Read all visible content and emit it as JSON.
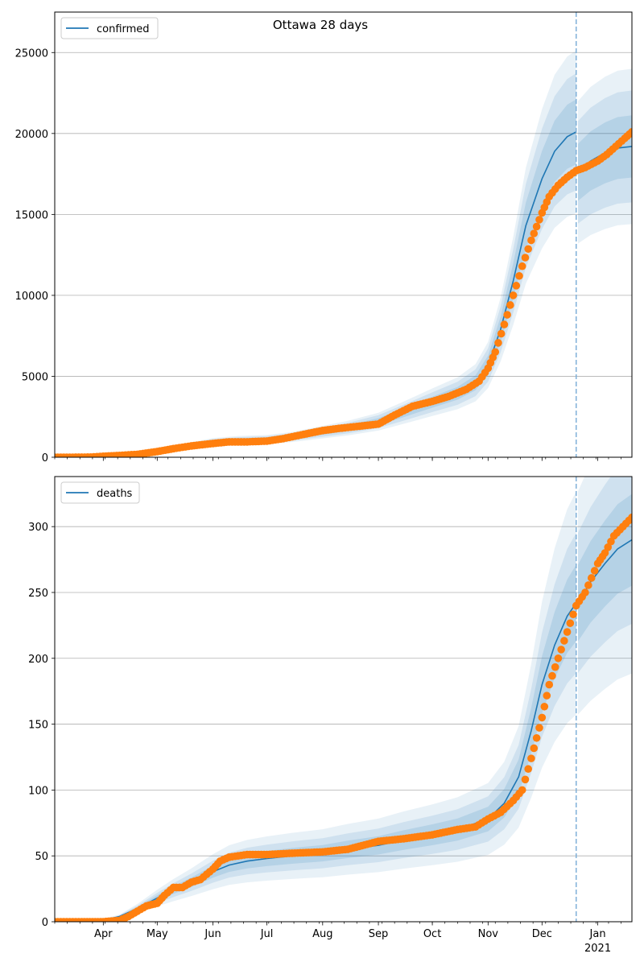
{
  "figure": {
    "title": "Ottawa 28 days"
  },
  "colors": {
    "model": "#1f77b4",
    "observed": "#ff7f0e",
    "band": "#1f77b4",
    "grid": "#b0b0b0",
    "vline": "#7fb0d8"
  },
  "x_axis": {
    "start": "2020-03-05",
    "end": "2021-01-20",
    "month_ticks": [
      {
        "date": "2020-04-01",
        "label": "Apr"
      },
      {
        "date": "2020-05-01",
        "label": "May"
      },
      {
        "date": "2020-06-01",
        "label": "Jun"
      },
      {
        "date": "2020-07-01",
        "label": "Jul"
      },
      {
        "date": "2020-08-01",
        "label": "Aug"
      },
      {
        "date": "2020-09-01",
        "label": "Sep"
      },
      {
        "date": "2020-10-01",
        "label": "Oct"
      },
      {
        "date": "2020-11-01",
        "label": "Nov"
      },
      {
        "date": "2020-12-01",
        "label": "Dec"
      },
      {
        "date": "2021-01-01",
        "label": "Jan"
      }
    ],
    "year_label": "2021",
    "forecast_start": "2020-12-20"
  },
  "chart_data": [
    {
      "type": "line",
      "legend": "confirmed",
      "legend_loc": "upper-left",
      "ylim": [
        0,
        27500
      ],
      "yticks": [
        0,
        5000,
        10000,
        15000,
        20000,
        25000
      ],
      "grid": "y",
      "model": {
        "x": [
          "2020-03-05",
          "2020-03-20",
          "2020-04-01",
          "2020-04-15",
          "2020-05-01",
          "2020-05-15",
          "2020-06-01",
          "2020-06-15",
          "2020-07-01",
          "2020-07-15",
          "2020-08-01",
          "2020-08-15",
          "2020-09-01",
          "2020-09-15",
          "2020-10-01",
          "2020-10-15",
          "2020-10-25",
          "2020-11-01",
          "2020-11-08",
          "2020-11-15",
          "2020-11-22",
          "2020-12-01",
          "2020-12-08",
          "2020-12-15",
          "2020-12-20",
          "2020-12-21",
          "2020-12-28",
          "2021-01-05",
          "2021-01-12",
          "2021-01-20"
        ],
        "y": [
          0,
          10,
          60,
          150,
          400,
          650,
          950,
          1050,
          1100,
          1250,
          1550,
          1800,
          2200,
          2750,
          3400,
          3950,
          4600,
          5700,
          7900,
          10900,
          14300,
          17200,
          18900,
          19800,
          20100,
          17600,
          18300,
          18800,
          19100,
          19200
        ],
        "band_rel": [
          0.25,
          0.18,
          0.1
        ]
      },
      "observed": {
        "x": [
          "2020-03-05",
          "2020-03-15",
          "2020-03-25",
          "2020-04-01",
          "2020-04-10",
          "2020-04-20",
          "2020-05-01",
          "2020-05-10",
          "2020-05-20",
          "2020-06-01",
          "2020-06-10",
          "2020-06-20",
          "2020-07-01",
          "2020-07-10",
          "2020-07-20",
          "2020-08-01",
          "2020-08-10",
          "2020-08-20",
          "2020-09-01",
          "2020-09-10",
          "2020-09-20",
          "2020-10-01",
          "2020-10-10",
          "2020-10-20",
          "2020-10-27",
          "2020-11-01",
          "2020-11-05",
          "2020-11-10",
          "2020-11-15",
          "2020-11-20",
          "2020-11-25",
          "2020-12-01",
          "2020-12-05",
          "2020-12-10",
          "2020-12-15",
          "2020-12-20",
          "2020-12-25",
          "2021-01-01",
          "2021-01-06",
          "2021-01-11",
          "2021-01-16",
          "2021-01-20"
        ],
        "y": [
          0,
          0,
          10,
          60,
          110,
          180,
          350,
          530,
          700,
          850,
          950,
          950,
          1000,
          1150,
          1380,
          1650,
          1780,
          1900,
          2050,
          2600,
          3150,
          3450,
          3750,
          4200,
          4700,
          5500,
          6500,
          8200,
          10000,
          11800,
          13400,
          15100,
          16100,
          16800,
          17300,
          17700,
          17900,
          18300,
          18700,
          19200,
          19700,
          20100
        ]
      }
    },
    {
      "type": "line",
      "legend": "deaths",
      "legend_loc": "upper-left",
      "ylim": [
        0,
        338
      ],
      "yticks": [
        0,
        50,
        100,
        150,
        200,
        250,
        300
      ],
      "grid": "y",
      "model": {
        "x": [
          "2020-03-05",
          "2020-03-20",
          "2020-04-01",
          "2020-04-10",
          "2020-04-20",
          "2020-05-01",
          "2020-05-10",
          "2020-05-20",
          "2020-06-01",
          "2020-06-10",
          "2020-06-20",
          "2020-07-01",
          "2020-07-15",
          "2020-08-01",
          "2020-08-15",
          "2020-09-01",
          "2020-09-15",
          "2020-10-01",
          "2020-10-15",
          "2020-11-01",
          "2020-11-10",
          "2020-11-18",
          "2020-11-25",
          "2020-12-01",
          "2020-12-08",
          "2020-12-15",
          "2020-12-20",
          "2020-12-21",
          "2020-12-28",
          "2021-01-05",
          "2021-01-12",
          "2021-01-20"
        ],
        "y": [
          0,
          0,
          1,
          4,
          10,
          18,
          24,
          30,
          38,
          43,
          46,
          48,
          50,
          52,
          55,
          58,
          62,
          66,
          70,
          78,
          90,
          110,
          145,
          180,
          210,
          232,
          242,
          242,
          258,
          272,
          283,
          290
        ],
        "band_rel": [
          0.35,
          0.22,
          0.12
        ]
      },
      "observed": {
        "x": [
          "2020-03-05",
          "2020-03-20",
          "2020-04-01",
          "2020-04-10",
          "2020-04-15",
          "2020-04-20",
          "2020-04-25",
          "2020-05-01",
          "2020-05-05",
          "2020-05-10",
          "2020-05-15",
          "2020-05-20",
          "2020-05-25",
          "2020-06-01",
          "2020-06-05",
          "2020-06-10",
          "2020-06-15",
          "2020-06-20",
          "2020-07-01",
          "2020-07-15",
          "2020-08-01",
          "2020-08-15",
          "2020-09-01",
          "2020-09-15",
          "2020-10-01",
          "2020-10-15",
          "2020-10-25",
          "2020-11-01",
          "2020-11-08",
          "2020-11-15",
          "2020-11-20",
          "2020-11-25",
          "2020-12-01",
          "2020-12-05",
          "2020-12-10",
          "2020-12-15",
          "2020-12-20",
          "2020-12-25",
          "2021-01-01",
          "2021-01-05",
          "2021-01-10",
          "2021-01-15",
          "2021-01-20"
        ],
        "y": [
          0,
          0,
          0,
          1,
          4,
          8,
          12,
          14,
          20,
          26,
          26,
          30,
          32,
          40,
          46,
          49,
          50,
          51,
          51,
          52,
          53,
          55,
          61,
          63,
          66,
          70,
          72,
          78,
          83,
          92,
          100,
          124,
          155,
          180,
          200,
          220,
          240,
          250,
          272,
          280,
          293,
          300,
          307
        ]
      }
    }
  ]
}
